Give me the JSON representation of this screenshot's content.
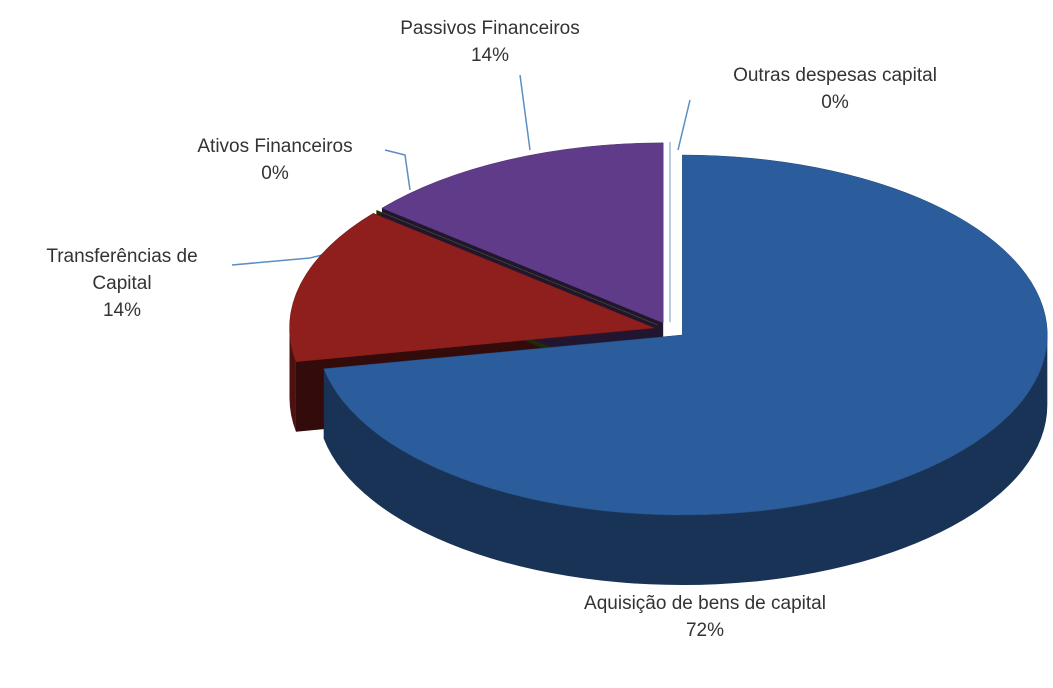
{
  "chart_data": {
    "type": "pie3d",
    "categories": [
      "Aquisição de bens de capital",
      "Transferências de Capital",
      "Ativos Financeiros",
      "Passivos Financeiros",
      "Outras despesas capital"
    ],
    "values": [
      72,
      14,
      0,
      14,
      0
    ],
    "value_labels": [
      "72%",
      "14%",
      "0%",
      "14%",
      "0%"
    ],
    "colors": [
      "#2b5c9c",
      "#8e1f1c",
      "#5f7222",
      "#5f3b8a",
      "#4a9ad0"
    ]
  }
}
